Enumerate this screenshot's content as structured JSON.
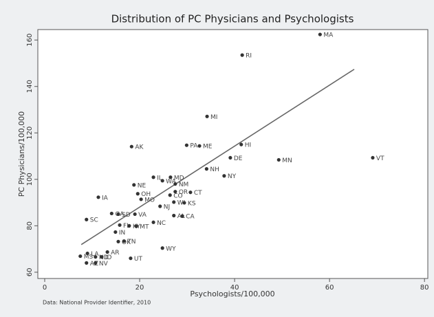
{
  "chart_data": {
    "type": "scatter",
    "title": "Distribution of PC Physicians and Psychologists",
    "xlabel": "Psychologists/100,000",
    "ylabel": "PC Physicians/100,000",
    "note": "Data: National Provider Identifier, 2010",
    "color": "#333333",
    "labels": [
      "MA",
      "RI",
      "MI",
      "PA",
      "ME",
      "AK",
      "HI",
      "DE",
      "MN",
      "VT",
      "NH",
      "NY",
      "IL",
      "MD",
      "WA",
      "NM",
      "NE",
      "OR",
      "CT",
      "CO",
      "OH",
      "MO",
      "IA",
      "WI",
      "KS",
      "NJ",
      "SC",
      "GA",
      "SD",
      "VA",
      "AL",
      "CA",
      "NC",
      "FL",
      "KY",
      "MT",
      "IN",
      "OK",
      "TN",
      "WY",
      "AR",
      "LA",
      "MS",
      "UT",
      "ND",
      "ID",
      "AZ",
      "NV"
    ],
    "x": [
      58.0,
      41.6,
      34.2,
      29.9,
      32.6,
      18.3,
      41.4,
      39.1,
      49.3,
      69.1,
      34.1,
      37.8,
      22.9,
      26.5,
      24.8,
      27.5,
      18.8,
      27.5,
      30.7,
      26.4,
      19.6,
      20.3,
      11.3,
      27.2,
      29.4,
      24.3,
      8.8,
      14.1,
      15.5,
      19.0,
      27.2,
      29.0,
      22.9,
      15.8,
      17.8,
      19.3,
      14.9,
      15.5,
      16.7,
      24.8,
      13.2,
      9.0,
      7.5,
      18.1,
      10.7,
      12.0,
      8.8,
      10.7
    ],
    "values": [
      162.4,
      153.5,
      127.1,
      114.7,
      114.4,
      114.1,
      115.0,
      109.3,
      108.4,
      109.3,
      104.5,
      101.5,
      100.9,
      100.9,
      99.4,
      98.0,
      97.6,
      94.7,
      94.4,
      93.2,
      93.8,
      91.4,
      92.3,
      90.2,
      89.9,
      88.4,
      82.7,
      85.3,
      85.0,
      85.0,
      84.4,
      84.2,
      81.5,
      80.3,
      80.0,
      79.8,
      77.3,
      73.2,
      73.4,
      70.4,
      68.7,
      68.1,
      66.9,
      66.0,
      66.6,
      66.6,
      64.0,
      64.0
    ],
    "fit": {
      "x": [
        7.7,
        65.2
      ],
      "y": [
        71.9,
        147.4
      ]
    },
    "xlim": [
      -1.45,
      80.7
    ],
    "ylim": [
      57.3,
      164.5
    ],
    "xticks": [
      0,
      20,
      40,
      60,
      80
    ],
    "yticks": [
      60,
      80,
      100,
      120,
      140,
      160
    ],
    "grid": false
  }
}
